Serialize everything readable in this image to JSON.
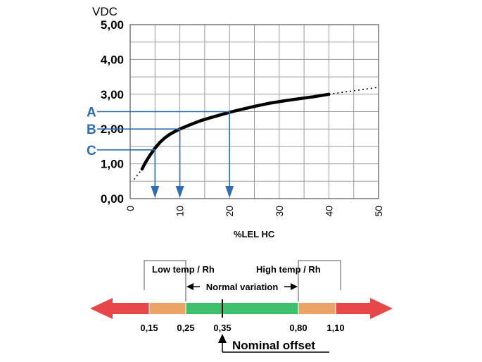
{
  "chart_data": {
    "type": "line",
    "ylabel": "VDC",
    "xlabel": "%LEL HC",
    "xlim": [
      0,
      50
    ],
    "ylim": [
      0,
      5
    ],
    "grid": true,
    "x_ticks": [
      "0",
      "10",
      "20",
      "30",
      "40",
      "50"
    ],
    "y_ticks": [
      "0,00",
      "1,00",
      "2,00",
      "3,00",
      "4,00",
      "5,00"
    ],
    "series": [
      {
        "style": "solid",
        "x": [
          2.4,
          3,
          4,
          5,
          6,
          7,
          8,
          9,
          10,
          12,
          14,
          16,
          18,
          20,
          22,
          25,
          28,
          31,
          34,
          37,
          40
        ],
        "y": [
          0.85,
          1.02,
          1.25,
          1.45,
          1.62,
          1.75,
          1.85,
          1.93,
          2.0,
          2.12,
          2.23,
          2.32,
          2.4,
          2.48,
          2.55,
          2.65,
          2.74,
          2.81,
          2.87,
          2.93,
          3.0
        ]
      },
      {
        "style": "dotted",
        "x": [
          0.8,
          1.6,
          2.4
        ],
        "y": [
          0.55,
          0.7,
          0.85
        ]
      },
      {
        "style": "dotted",
        "x": [
          40,
          45,
          50
        ],
        "y": [
          3.0,
          3.1,
          3.2
        ]
      }
    ],
    "annotations": [
      {
        "label": "A",
        "y": 2.5,
        "x": 20
      },
      {
        "label": "B",
        "y": 2.0,
        "x": 10
      },
      {
        "label": "C",
        "y": 1.4,
        "x": 5
      }
    ]
  },
  "scale": {
    "low_label": "Low temp / Rh",
    "high_label": "High temp / Rh",
    "normal_label": "Normal variation",
    "nominal_label": "Nominal offset",
    "ticks": [
      "0,15",
      "0,25",
      "0,35",
      "0,80",
      "1,10"
    ],
    "colors": {
      "red": "#e8474a",
      "orange": "#eba467",
      "green": "#3fc06c"
    }
  }
}
